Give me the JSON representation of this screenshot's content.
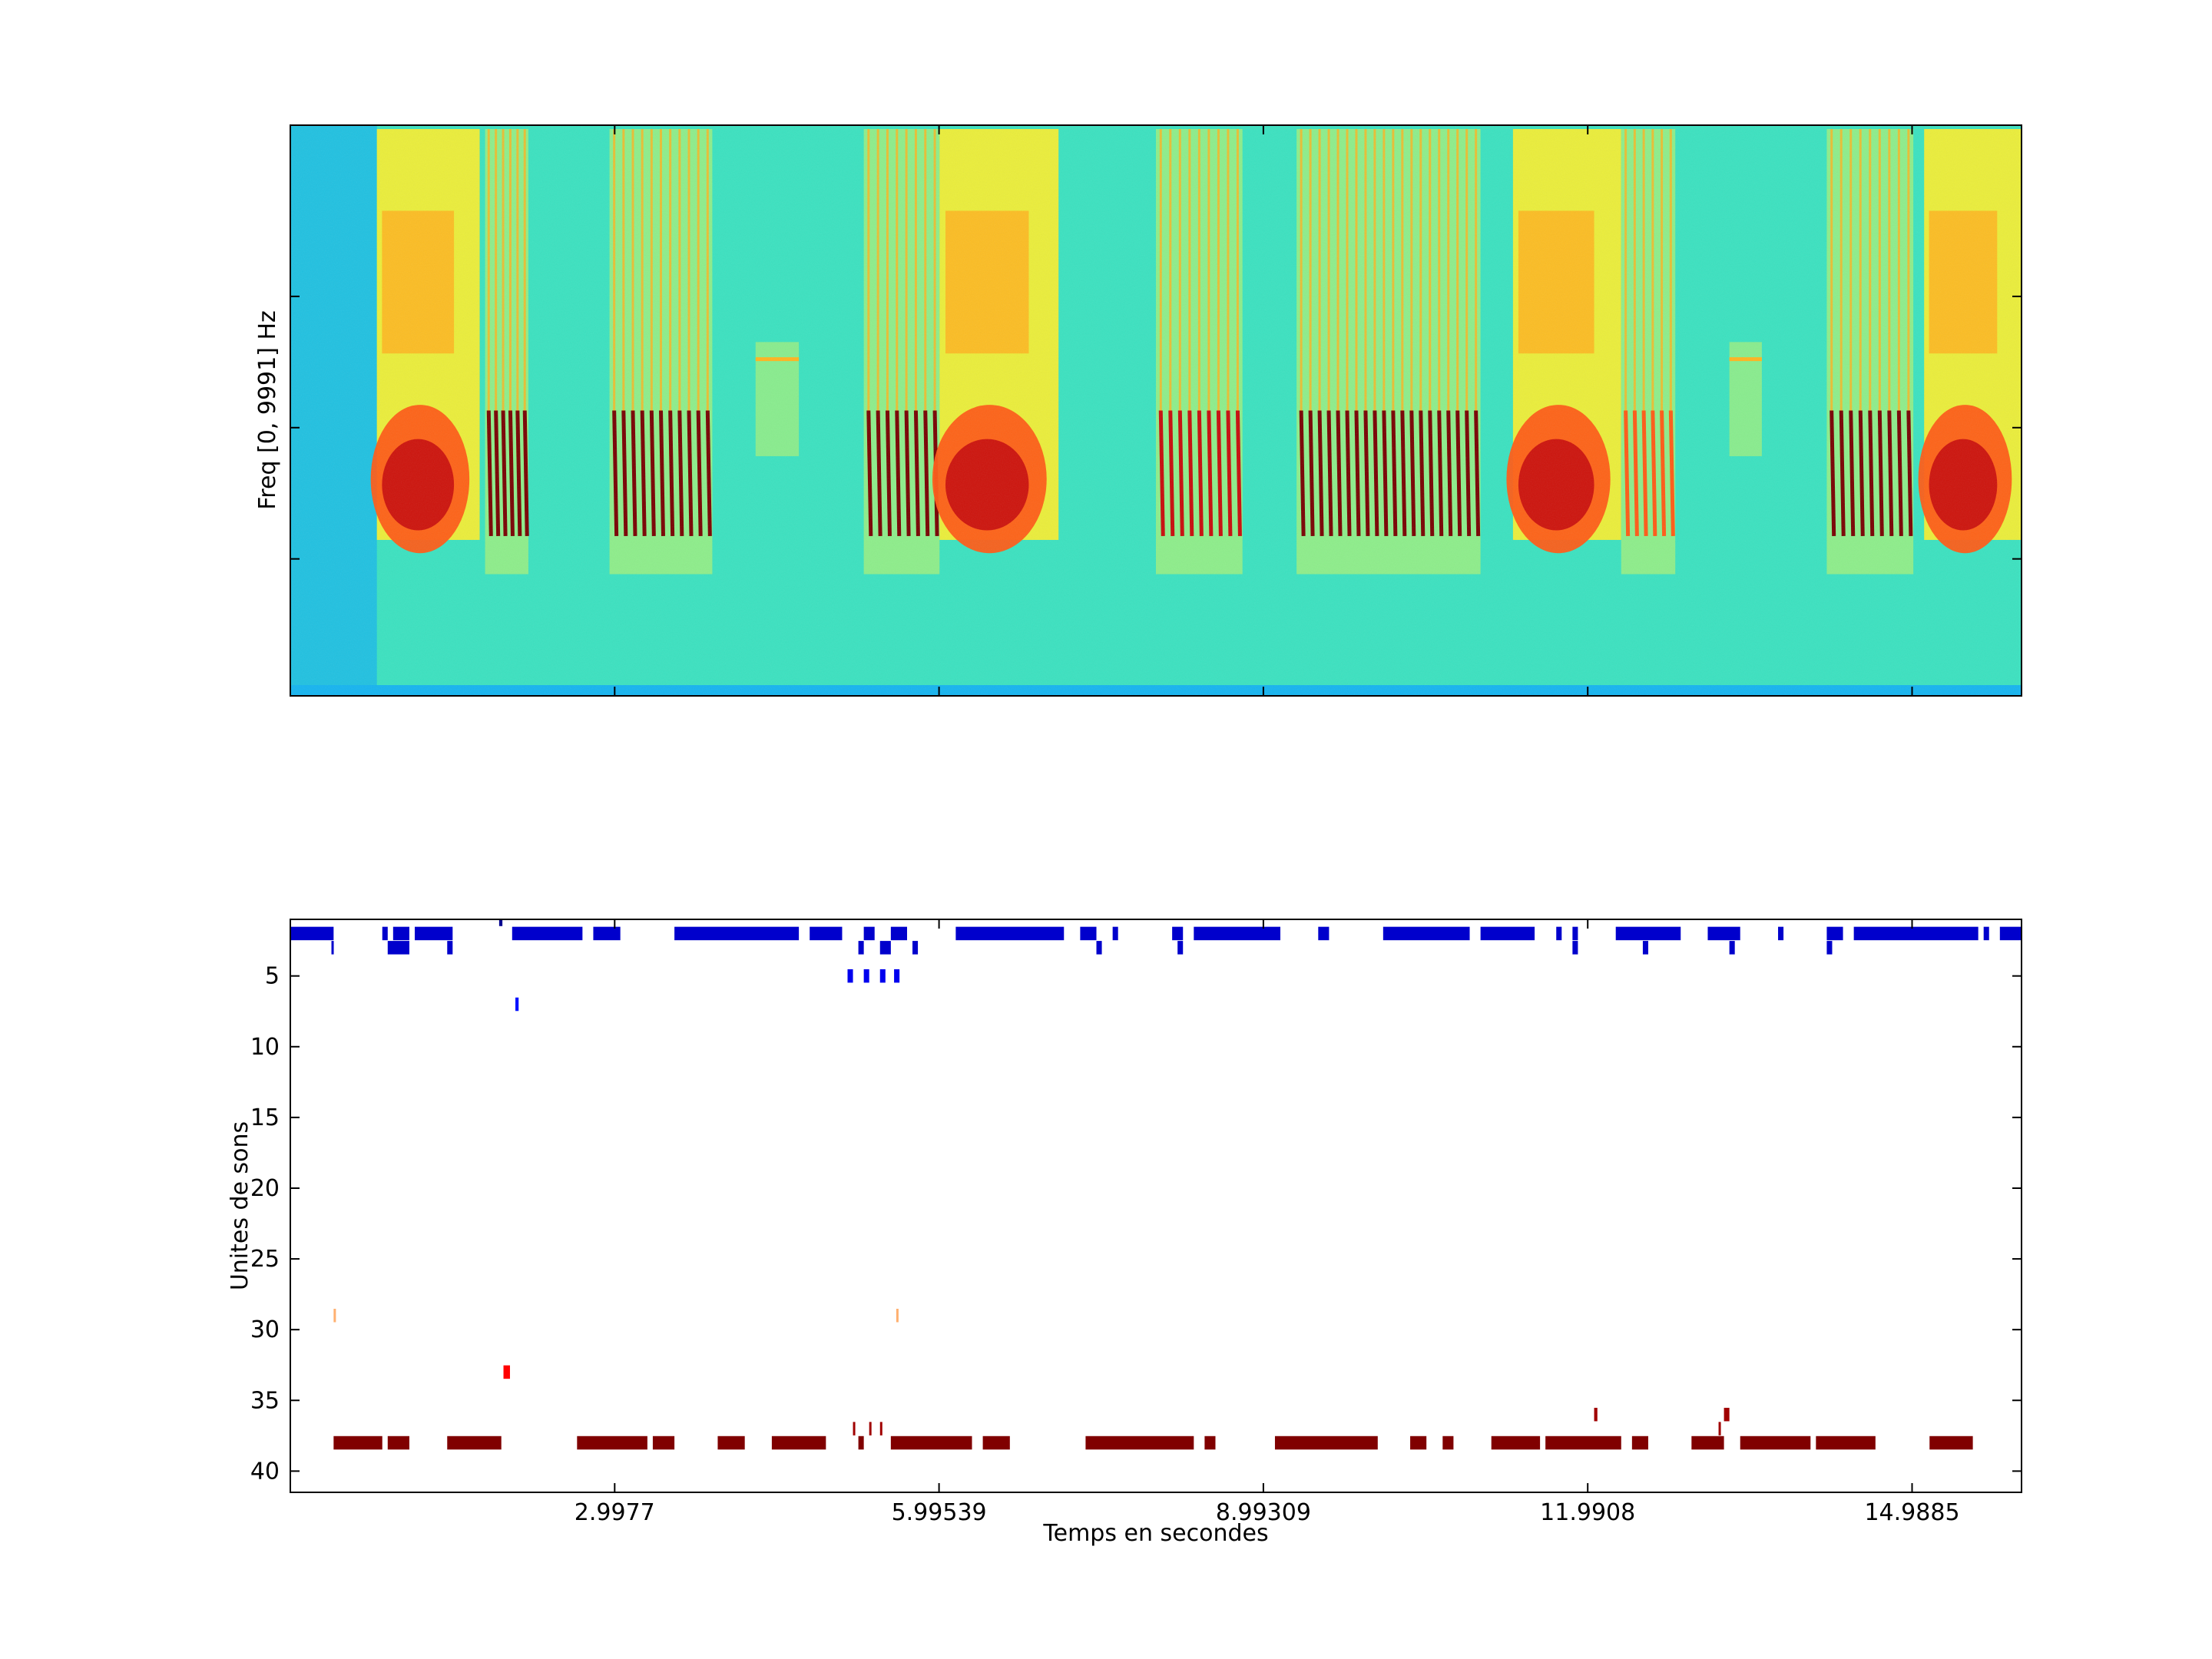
{
  "chart_data": [
    {
      "type": "heatmap",
      "ylabel": "Freq [0, 9991] Hz",
      "xlabel": "",
      "x_range_seconds": [
        0,
        16.0
      ],
      "colormap": "jet",
      "colormap_stops": [
        "#1e3cff",
        "#14b4f0",
        "#2ee8c8",
        "#9cf080",
        "#fff02a",
        "#ffb41e",
        "#ff5a14",
        "#c80a0a",
        "#780000"
      ],
      "grid": false,
      "segments": [
        {
          "t0": 0.8,
          "t1": 1.75,
          "kind": "broadband",
          "level": 0.9
        },
        {
          "t0": 1.8,
          "t1": 2.2,
          "kind": "pulse-train",
          "level": 0.95
        },
        {
          "t0": 2.95,
          "t1": 3.9,
          "kind": "pulse-train",
          "level": 0.95
        },
        {
          "t0": 4.3,
          "t1": 4.7,
          "kind": "tone",
          "level": 0.55
        },
        {
          "t0": 5.3,
          "t1": 6.0,
          "kind": "pulse-train",
          "level": 0.95
        },
        {
          "t0": 6.0,
          "t1": 7.1,
          "kind": "broadband",
          "level": 0.92
        },
        {
          "t0": 8.0,
          "t1": 8.8,
          "kind": "pulse-train",
          "level": 0.9
        },
        {
          "t0": 9.3,
          "t1": 11.0,
          "kind": "pulse-train",
          "level": 0.95
        },
        {
          "t0": 11.3,
          "t1": 12.3,
          "kind": "broadband",
          "level": 0.92
        },
        {
          "t0": 12.3,
          "t1": 12.8,
          "kind": "pulse-train",
          "level": 0.8
        },
        {
          "t0": 13.3,
          "t1": 13.6,
          "kind": "tone",
          "level": 0.5
        },
        {
          "t0": 14.2,
          "t1": 15.0,
          "kind": "pulse-train",
          "level": 0.95
        },
        {
          "t0": 15.1,
          "t1": 16.0,
          "kind": "broadband",
          "level": 0.9
        }
      ]
    },
    {
      "type": "scatter",
      "ylabel": "Unites de sons",
      "xlabel": "Temps en secondes",
      "x_range": [
        0,
        16.0
      ],
      "ylim": [
        1,
        41.5
      ],
      "y_reversed": true,
      "xticks": [
        {
          "value": 2.9977,
          "label": "2.9977"
        },
        {
          "value": 5.99539,
          "label": "5.99539"
        },
        {
          "value": 8.99309,
          "label": "8.99309"
        },
        {
          "value": 11.9908,
          "label": "11.9908"
        },
        {
          "value": 14.9885,
          "label": "14.9885"
        }
      ],
      "yticks": [
        {
          "value": 5,
          "label": "5"
        },
        {
          "value": 10,
          "label": "10"
        },
        {
          "value": 15,
          "label": "15"
        },
        {
          "value": 20,
          "label": "20"
        },
        {
          "value": 25,
          "label": "25"
        },
        {
          "value": 30,
          "label": "30"
        },
        {
          "value": 35,
          "label": "35"
        },
        {
          "value": 40,
          "label": "40"
        }
      ],
      "grid": false,
      "rows": [
        {
          "unit": 1,
          "color": "#00008f",
          "intervals": [
            [
              1.93,
              1.96
            ]
          ]
        },
        {
          "unit": 2,
          "color": "#0000cc",
          "intervals": [
            [
              0.0,
              0.4
            ],
            [
              0.85,
              0.9
            ],
            [
              0.95,
              1.1
            ],
            [
              1.15,
              1.5
            ],
            [
              2.05,
              2.7
            ],
            [
              2.8,
              3.05
            ],
            [
              3.55,
              4.7
            ],
            [
              4.8,
              5.1
            ],
            [
              5.3,
              5.4
            ],
            [
              5.55,
              5.7
            ],
            [
              6.15,
              7.15
            ],
            [
              7.3,
              7.45
            ],
            [
              7.6,
              7.65
            ],
            [
              8.15,
              8.25
            ],
            [
              8.35,
              9.15
            ],
            [
              9.5,
              9.6
            ],
            [
              10.1,
              10.9
            ],
            [
              11.0,
              11.5
            ],
            [
              11.7,
              11.75
            ],
            [
              11.85,
              11.9
            ],
            [
              12.25,
              12.85
            ],
            [
              13.1,
              13.4
            ],
            [
              13.75,
              13.8
            ],
            [
              14.2,
              14.35
            ],
            [
              14.45,
              15.6
            ],
            [
              15.65,
              15.7
            ],
            [
              15.8,
              16.0
            ]
          ]
        },
        {
          "unit": 3,
          "color": "#0000cc",
          "intervals": [
            [
              0.38,
              0.4
            ],
            [
              0.9,
              1.1
            ],
            [
              1.45,
              1.5
            ],
            [
              5.25,
              5.3
            ],
            [
              5.45,
              5.55
            ],
            [
              5.75,
              5.8
            ],
            [
              7.45,
              7.5
            ],
            [
              8.2,
              8.25
            ],
            [
              11.85,
              11.9
            ],
            [
              12.5,
              12.55
            ],
            [
              13.3,
              13.35
            ],
            [
              14.2,
              14.25
            ]
          ]
        },
        {
          "unit": 5,
          "color": "#0000ee",
          "intervals": [
            [
              5.15,
              5.2
            ],
            [
              5.3,
              5.35
            ],
            [
              5.45,
              5.5
            ],
            [
              5.58,
              5.63
            ]
          ]
        },
        {
          "unit": 7,
          "color": "#0010ff",
          "intervals": [
            [
              2.08,
              2.11
            ]
          ]
        },
        {
          "unit": 29,
          "color": "#ffb070",
          "intervals": [
            [
              0.4,
              0.42
            ],
            [
              5.6,
              5.62
            ]
          ]
        },
        {
          "unit": 33,
          "color": "#ff0000",
          "intervals": [
            [
              1.97,
              2.03
            ]
          ]
        },
        {
          "unit": 36,
          "color": "#a00000",
          "intervals": [
            [
              12.05,
              12.08
            ],
            [
              13.25,
              13.3
            ]
          ]
        },
        {
          "unit": 37,
          "color": "#a00000",
          "intervals": [
            [
              5.2,
              5.22
            ],
            [
              5.35,
              5.37
            ],
            [
              5.45,
              5.47
            ],
            [
              13.2,
              13.22
            ]
          ]
        },
        {
          "unit": 38,
          "color": "#800000",
          "intervals": [
            [
              0.4,
              0.85
            ],
            [
              0.9,
              1.1
            ],
            [
              1.45,
              1.95
            ],
            [
              2.65,
              3.3
            ],
            [
              3.35,
              3.55
            ],
            [
              3.95,
              4.2
            ],
            [
              4.45,
              4.95
            ],
            [
              5.25,
              5.3
            ],
            [
              5.55,
              6.3
            ],
            [
              6.4,
              6.65
            ],
            [
              7.35,
              8.35
            ],
            [
              8.45,
              8.55
            ],
            [
              9.1,
              10.05
            ],
            [
              10.35,
              10.5
            ],
            [
              10.65,
              10.75
            ],
            [
              11.1,
              11.55
            ],
            [
              11.6,
              12.3
            ],
            [
              12.4,
              12.55
            ],
            [
              12.95,
              13.25
            ],
            [
              13.4,
              14.05
            ],
            [
              14.1,
              14.65
            ],
            [
              15.15,
              15.55
            ]
          ]
        }
      ]
    }
  ]
}
